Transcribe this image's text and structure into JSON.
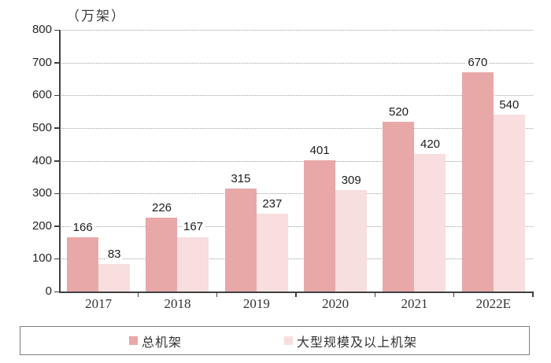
{
  "chart_data": {
    "type": "bar",
    "unit_label": "（万架）",
    "categories": [
      "2017",
      "2018",
      "2019",
      "2020",
      "2021",
      "2022E"
    ],
    "series": [
      {
        "name": "总机架",
        "color": "#e8a8a8",
        "values": [
          166,
          226,
          315,
          401,
          520,
          670
        ]
      },
      {
        "name": "大型规模及以上机架",
        "color": "#f8dede",
        "values": [
          83,
          167,
          237,
          309,
          420,
          540
        ]
      }
    ],
    "ylim": [
      0,
      800
    ],
    "ytick_step": 100,
    "yticks": [
      800,
      700,
      600,
      500,
      400,
      300,
      200,
      100,
      0
    ],
    "grid": true,
    "gridline_style": "dotted",
    "legend_position": "bottom",
    "colors": {
      "axis": "#404040",
      "gridline": "#a0a0a0",
      "value_label": "#1c1c1c",
      "tick_label": "#262626"
    }
  }
}
